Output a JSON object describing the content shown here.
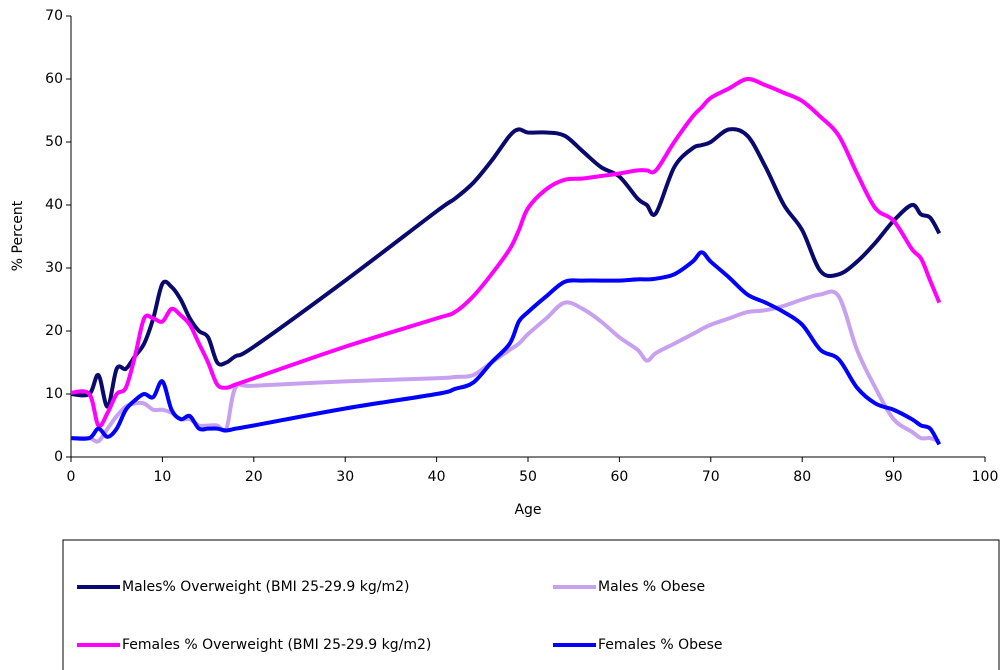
{
  "chart_data": {
    "type": "line",
    "x_label": "Age",
    "y_label": "% Percent",
    "x": [
      0,
      2,
      3,
      4,
      5,
      6,
      7,
      8,
      9,
      10,
      11,
      12,
      13,
      14,
      15,
      16,
      17,
      18,
      20,
      30,
      40,
      42,
      44,
      46,
      48,
      49,
      50,
      52,
      54,
      56,
      58,
      60,
      62,
      63,
      64,
      66,
      68,
      69,
      70,
      72,
      74,
      76,
      78,
      80,
      82,
      84,
      86,
      88,
      90,
      92,
      93,
      94,
      95
    ],
    "series": [
      {
        "name": "Males% Overweight (BMI 25-29.9 kg/m2)",
        "color": "#0a0a6e",
        "values": [
          10,
          10,
          13,
          8,
          14,
          14,
          16,
          18,
          22,
          27.5,
          27,
          25,
          22,
          20,
          19,
          15,
          15,
          16,
          17.5,
          28,
          39,
          41,
          43.5,
          47,
          51,
          52,
          51.5,
          51.5,
          51,
          48.5,
          46,
          44.5,
          41,
          40,
          38.7,
          46,
          49,
          49.5,
          50,
          52,
          51,
          46,
          40,
          36,
          29.5,
          29,
          31,
          34,
          37.5,
          40,
          38.5,
          38,
          35.5
        ]
      },
      {
        "name": "Males % Obese",
        "color": "#c8a0f0",
        "values": [
          3,
          3,
          2.5,
          4.5,
          6.5,
          8,
          8.5,
          8.5,
          7.5,
          7.5,
          7,
          6,
          6,
          5,
          5,
          5,
          4.5,
          11,
          11.3,
          12,
          12.5,
          12.7,
          13,
          15,
          17,
          18,
          19.5,
          22,
          24.5,
          23.5,
          21.5,
          19,
          17,
          15.3,
          16.5,
          18,
          19.5,
          20.3,
          21,
          22,
          23,
          23.3,
          24,
          25,
          25.8,
          25.5,
          17,
          11,
          6,
          4,
          3,
          3,
          2.5
        ]
      },
      {
        "name": "Females % Overweight (BMI 25-29.9 kg/m2)",
        "color": "#ff00ff",
        "values": [
          10.2,
          10,
          5,
          7,
          10,
          11,
          16,
          22,
          22,
          21.5,
          23.5,
          22.5,
          21,
          18,
          15,
          11.5,
          11,
          11.5,
          12.5,
          17.5,
          22,
          23,
          25.5,
          29,
          33,
          36,
          39.5,
          42.5,
          44,
          44.2,
          44.6,
          45,
          45.5,
          45.5,
          45.5,
          50,
          54,
          55.5,
          57,
          58.5,
          60,
          59,
          57.8,
          56.5,
          54,
          51,
          45,
          39.5,
          37.5,
          33,
          31.5,
          28,
          24.5
        ]
      },
      {
        "name": "Females % Obese",
        "color": "#0000ff",
        "values": [
          3,
          3,
          4.5,
          3.2,
          4.5,
          7.5,
          9,
          10,
          9.5,
          12,
          7.5,
          6,
          6.5,
          4.5,
          4.5,
          4.5,
          4.2,
          4.5,
          5,
          7.7,
          10,
          10.8,
          11.8,
          15,
          18,
          21.5,
          23,
          25.5,
          27.8,
          28,
          28,
          28,
          28.2,
          28.2,
          28.3,
          29,
          31,
          32.5,
          31,
          28.5,
          25.8,
          24.5,
          23,
          21,
          17,
          15.5,
          11,
          8.5,
          7.5,
          6,
          5,
          4.5,
          2
        ]
      }
    ],
    "xlim": [
      0,
      100
    ],
    "xticks": [
      0,
      10,
      20,
      30,
      40,
      50,
      60,
      70,
      80,
      90,
      100
    ],
    "ylim": [
      0,
      70
    ],
    "yticks": [
      0,
      10,
      20,
      30,
      40,
      50,
      60,
      70
    ],
    "grid": false,
    "legend": "bottom"
  }
}
